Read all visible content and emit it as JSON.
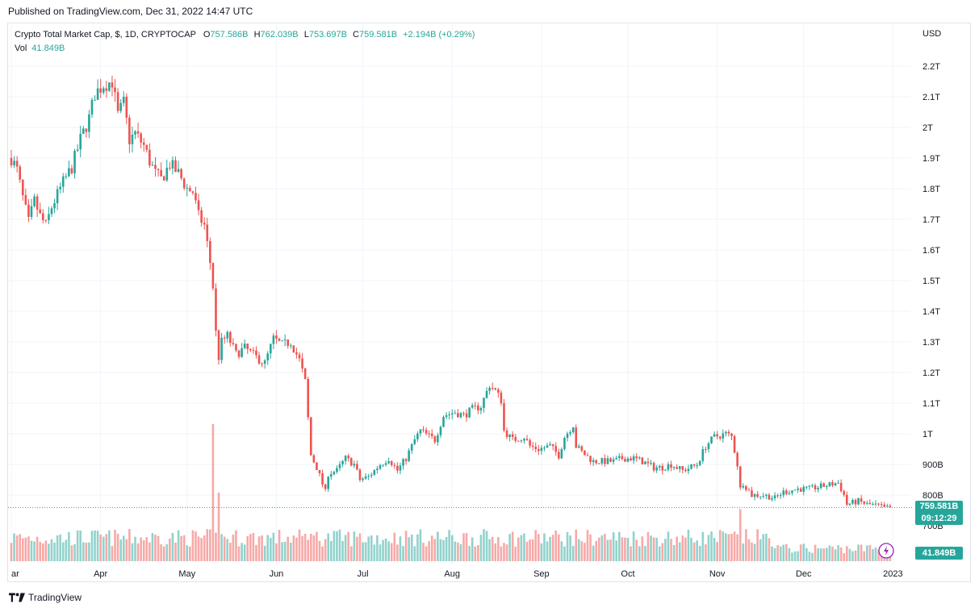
{
  "header": {
    "published": "Published on TradingView.com, Dec 31, 2022 14:47 UTC"
  },
  "legend": {
    "symbol": "Crypto Total Market Cap, $, 1D, CRYPTOCAP",
    "open_label": "O",
    "open": "757.586B",
    "high_label": "H",
    "high": "762.039B",
    "low_label": "L",
    "low": "753.697B",
    "close_label": "C",
    "close": "759.581B",
    "change": "+2.194B (+0.29%)",
    "vol_label": "Vol",
    "vol": "41.849B"
  },
  "price_tag": {
    "price": "759.581B",
    "countdown": "09:12:29"
  },
  "vol_tag": "41.849B",
  "footer": {
    "brand": "TradingView"
  },
  "colors": {
    "up": "#26a69a",
    "down": "#ef5350",
    "grid": "#f0f3fa",
    "text": "#131722"
  },
  "chart_data": {
    "type": "candlestick",
    "currency_label": "USD",
    "y_unit": "USD (billions)",
    "y_ticks": [
      {
        "value": 800,
        "label": "800B"
      },
      {
        "value": 900,
        "label": "900B"
      },
      {
        "value": 1000,
        "label": "1T"
      },
      {
        "value": 1100,
        "label": "1.1T"
      },
      {
        "value": 1200,
        "label": "1.2T"
      },
      {
        "value": 1300,
        "label": "1.3T"
      },
      {
        "value": 1400,
        "label": "1.4T"
      },
      {
        "value": 1500,
        "label": "1.5T"
      },
      {
        "value": 1600,
        "label": "1.6T"
      },
      {
        "value": 1700,
        "label": "1.7T"
      },
      {
        "value": 1800,
        "label": "1.8T"
      },
      {
        "value": 1900,
        "label": "1.9T"
      },
      {
        "value": 2000,
        "label": "2T"
      },
      {
        "value": 2100,
        "label": "2.1T"
      },
      {
        "value": 2200,
        "label": "2.2T"
      }
    ],
    "partial_tick_label": "700B",
    "x_ticks": [
      {
        "label": "ar",
        "date": "2022-03-01"
      },
      {
        "label": "Apr",
        "date": "2022-04-01"
      },
      {
        "label": "May",
        "date": "2022-05-01"
      },
      {
        "label": "Jun",
        "date": "2022-06-01"
      },
      {
        "label": "Jul",
        "date": "2022-07-01"
      },
      {
        "label": "Aug",
        "date": "2022-08-01"
      },
      {
        "label": "Sep",
        "date": "2022-09-01"
      },
      {
        "label": "Oct",
        "date": "2022-10-01"
      },
      {
        "label": "Nov",
        "date": "2022-11-01"
      },
      {
        "label": "Dec",
        "date": "2022-12-01"
      },
      {
        "label": "2023",
        "date": "2023-01-01"
      }
    ],
    "date_range": [
      "2022-03-01",
      "2022-12-31"
    ],
    "close_path": [
      [
        "2022-03-01",
        1900
      ],
      [
        "2022-03-03",
        1860
      ],
      [
        "2022-03-05",
        1770
      ],
      [
        "2022-03-07",
        1690
      ],
      [
        "2022-03-09",
        1760
      ],
      [
        "2022-03-11",
        1710
      ],
      [
        "2022-03-13",
        1680
      ],
      [
        "2022-03-15",
        1740
      ],
      [
        "2022-03-17",
        1780
      ],
      [
        "2022-03-19",
        1820
      ],
      [
        "2022-03-22",
        1870
      ],
      [
        "2022-03-25",
        1960
      ],
      [
        "2022-03-28",
        2030
      ],
      [
        "2022-03-30",
        2110
      ],
      [
        "2022-04-02",
        2140
      ],
      [
        "2022-04-05",
        2150
      ],
      [
        "2022-04-07",
        2040
      ],
      [
        "2022-04-09",
        2080
      ],
      [
        "2022-04-11",
        1960
      ],
      [
        "2022-04-13",
        1980
      ],
      [
        "2022-04-16",
        1940
      ],
      [
        "2022-04-18",
        1890
      ],
      [
        "2022-04-20",
        1850
      ],
      [
        "2022-04-22",
        1830
      ],
      [
        "2022-04-25",
        1880
      ],
      [
        "2022-04-28",
        1850
      ],
      [
        "2022-05-01",
        1800
      ],
      [
        "2022-05-03",
        1790
      ],
      [
        "2022-05-05",
        1710
      ],
      [
        "2022-05-07",
        1680
      ],
      [
        "2022-05-09",
        1560
      ],
      [
        "2022-05-10",
        1480
      ],
      [
        "2022-05-11",
        1330
      ],
      [
        "2022-05-12",
        1250
      ],
      [
        "2022-05-13",
        1300
      ],
      [
        "2022-05-15",
        1320
      ],
      [
        "2022-05-18",
        1260
      ],
      [
        "2022-05-21",
        1280
      ],
      [
        "2022-05-25",
        1250
      ],
      [
        "2022-05-28",
        1230
      ],
      [
        "2022-05-31",
        1310
      ],
      [
        "2022-06-03",
        1290
      ],
      [
        "2022-06-06",
        1300
      ],
      [
        "2022-06-09",
        1240
      ],
      [
        "2022-06-11",
        1170
      ],
      [
        "2022-06-12",
        1050
      ],
      [
        "2022-06-13",
        930
      ],
      [
        "2022-06-15",
        890
      ],
      [
        "2022-06-18",
        810
      ],
      [
        "2022-06-19",
        870
      ],
      [
        "2022-06-22",
        880
      ],
      [
        "2022-06-25",
        920
      ],
      [
        "2022-06-28",
        900
      ],
      [
        "2022-06-30",
        850
      ],
      [
        "2022-07-03",
        860
      ],
      [
        "2022-07-07",
        900
      ],
      [
        "2022-07-10",
        920
      ],
      [
        "2022-07-13",
        880
      ],
      [
        "2022-07-16",
        920
      ],
      [
        "2022-07-19",
        980
      ],
      [
        "2022-07-21",
        1010
      ],
      [
        "2022-07-26",
        980
      ],
      [
        "2022-07-29",
        1060
      ],
      [
        "2022-08-02",
        1070
      ],
      [
        "2022-08-05",
        1060
      ],
      [
        "2022-08-08",
        1080
      ],
      [
        "2022-08-11",
        1090
      ],
      [
        "2022-08-14",
        1160
      ],
      [
        "2022-08-16",
        1140
      ],
      [
        "2022-08-18",
        1110
      ],
      [
        "2022-08-19",
        1010
      ],
      [
        "2022-08-22",
        980
      ],
      [
        "2022-08-26",
        990
      ],
      [
        "2022-08-28",
        960
      ],
      [
        "2022-08-31",
        950
      ],
      [
        "2022-09-04",
        960
      ],
      [
        "2022-09-07",
        930
      ],
      [
        "2022-09-09",
        990
      ],
      [
        "2022-09-12",
        1030
      ],
      [
        "2022-09-13",
        960
      ],
      [
        "2022-09-15",
        940
      ],
      [
        "2022-09-19",
        910
      ],
      [
        "2022-09-22",
        910
      ],
      [
        "2022-09-26",
        910
      ],
      [
        "2022-09-29",
        920
      ],
      [
        "2022-10-03",
        920
      ],
      [
        "2022-10-06",
        910
      ],
      [
        "2022-10-10",
        890
      ],
      [
        "2022-10-13",
        890
      ],
      [
        "2022-10-16",
        900
      ],
      [
        "2022-10-20",
        880
      ],
      [
        "2022-10-25",
        900
      ],
      [
        "2022-10-28",
        960
      ],
      [
        "2022-10-31",
        990
      ],
      [
        "2022-11-04",
        1000
      ],
      [
        "2022-11-06",
        990
      ],
      [
        "2022-11-08",
        900
      ],
      [
        "2022-11-09",
        820
      ],
      [
        "2022-11-10",
        840
      ],
      [
        "2022-11-13",
        800
      ],
      [
        "2022-11-17",
        800
      ],
      [
        "2022-11-21",
        790
      ],
      [
        "2022-11-24",
        810
      ],
      [
        "2022-11-29",
        820
      ],
      [
        "2022-12-03",
        820
      ],
      [
        "2022-12-08",
        830
      ],
      [
        "2022-12-13",
        840
      ],
      [
        "2022-12-15",
        800
      ],
      [
        "2022-12-16",
        770
      ],
      [
        "2022-12-20",
        780
      ],
      [
        "2022-12-23",
        770
      ],
      [
        "2022-12-27",
        765
      ],
      [
        "2022-12-29",
        757
      ],
      [
        "2022-12-31",
        759.581
      ]
    ],
    "last_close": 759.581,
    "volume": {
      "label": "Vol",
      "last": "41.849B",
      "spikes": [
        {
          "date": "2022-05-10",
          "relative": 1.0
        },
        {
          "date": "2022-05-12",
          "relative": 0.5
        },
        {
          "date": "2022-06-13",
          "relative": 0.2
        },
        {
          "date": "2022-11-09",
          "relative": 0.38
        }
      ]
    }
  }
}
